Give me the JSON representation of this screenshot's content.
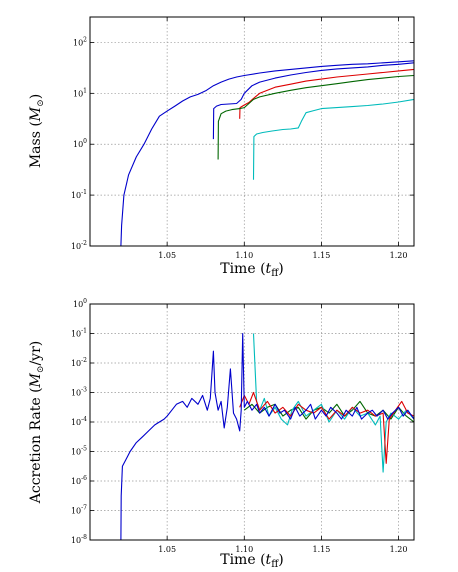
{
  "chart_data": [
    {
      "type": "line",
      "xlabel": "Time",
      "xlabel_sym": "t",
      "xlabel_sub": "ff",
      "ylabel": "Mass",
      "ylabel_sym": "M",
      "ylabel_sub": "⊙",
      "yscale": "log",
      "xlim": [
        1.0,
        1.21
      ],
      "ylim_exp": [
        -2,
        2.5
      ],
      "xticks": [
        "1.05",
        "1.10",
        "1.15",
        "1.20"
      ],
      "xtick_values": [
        1.05,
        1.1,
        1.15,
        1.2
      ],
      "yticks": [
        "10",
        "10",
        "10",
        "10",
        "10"
      ],
      "ytick_exps": [
        "-2",
        "-1",
        "0",
        "1",
        "2"
      ],
      "ytick_values": [
        -2,
        -1,
        0,
        1,
        2
      ],
      "grid": true,
      "series": [
        {
          "color": "#0000cc",
          "x": [
            1.02,
            1.0205,
            1.022,
            1.025,
            1.03,
            1.035,
            1.04,
            1.045,
            1.05,
            1.055,
            1.06,
            1.065,
            1.07,
            1.075,
            1.08,
            1.085,
            1.09,
            1.095,
            1.1,
            1.11,
            1.12,
            1.13,
            1.14,
            1.15,
            1.16,
            1.17,
            1.18,
            1.19,
            1.2,
            1.21
          ],
          "y": [
            -2.0,
            -1.6,
            -1.0,
            -0.6,
            -0.25,
            0.0,
            0.3,
            0.55,
            0.65,
            0.75,
            0.85,
            0.93,
            0.98,
            1.05,
            1.15,
            1.22,
            1.28,
            1.32,
            1.35,
            1.4,
            1.44,
            1.47,
            1.5,
            1.53,
            1.55,
            1.57,
            1.58,
            1.6,
            1.62,
            1.64
          ]
        },
        {
          "color": "#0000cc",
          "x": [
            1.08,
            1.0802,
            1.082,
            1.085,
            1.09,
            1.095,
            1.098,
            1.1,
            1.105,
            1.11,
            1.12,
            1.13,
            1.14,
            1.15,
            1.16,
            1.17,
            1.18,
            1.19,
            1.2,
            1.21
          ],
          "y": [
            0.1,
            0.7,
            0.75,
            0.78,
            0.79,
            0.8,
            0.88,
            1.0,
            1.15,
            1.22,
            1.3,
            1.36,
            1.41,
            1.45,
            1.48,
            1.5,
            1.52,
            1.55,
            1.57,
            1.6
          ]
        },
        {
          "color": "#dd0000",
          "x": [
            1.097,
            1.0972,
            1.1,
            1.103,
            1.106,
            1.11,
            1.12,
            1.13,
            1.14,
            1.15,
            1.16,
            1.17,
            1.18,
            1.19,
            1.2,
            1.21
          ],
          "y": [
            0.5,
            0.72,
            0.77,
            0.82,
            0.9,
            1.0,
            1.12,
            1.18,
            1.24,
            1.28,
            1.32,
            1.35,
            1.38,
            1.41,
            1.44,
            1.47
          ]
        },
        {
          "color": "#006600",
          "x": [
            1.083,
            1.0832,
            1.085,
            1.088,
            1.092,
            1.097,
            1.1,
            1.103,
            1.106,
            1.11,
            1.12,
            1.13,
            1.14,
            1.15,
            1.16,
            1.17,
            1.18,
            1.19,
            1.2,
            1.21
          ],
          "y": [
            -0.3,
            0.45,
            0.6,
            0.65,
            0.68,
            0.7,
            0.72,
            0.8,
            0.88,
            0.93,
            1.0,
            1.06,
            1.11,
            1.15,
            1.19,
            1.23,
            1.27,
            1.3,
            1.33,
            1.35
          ]
        },
        {
          "color": "#00bbbb",
          "x": [
            1.106,
            1.1062,
            1.108,
            1.112,
            1.118,
            1.125,
            1.13,
            1.135,
            1.137,
            1.14,
            1.145,
            1.15,
            1.16,
            1.17,
            1.18,
            1.19,
            1.2,
            1.21
          ],
          "y": [
            -0.7,
            0.15,
            0.2,
            0.23,
            0.26,
            0.29,
            0.3,
            0.32,
            0.45,
            0.62,
            0.66,
            0.7,
            0.72,
            0.74,
            0.76,
            0.79,
            0.83,
            0.88
          ]
        }
      ]
    },
    {
      "type": "line",
      "xlabel": "Time",
      "xlabel_sym": "t",
      "xlabel_sub": "ff",
      "ylabel": "Accretion Rate",
      "ylabel_sym": "M",
      "ylabel_sub": "⊙",
      "ylabel_unit": "/yr",
      "yscale": "log",
      "xlim": [
        1.0,
        1.21
      ],
      "ylim_exp": [
        -8,
        0
      ],
      "xticks": [
        "1.05",
        "1.10",
        "1.15",
        "1.20"
      ],
      "xtick_values": [
        1.05,
        1.1,
        1.15,
        1.2
      ],
      "yticks": [
        "10",
        "10",
        "10",
        "10",
        "10",
        "10",
        "10",
        "10",
        "10"
      ],
      "ytick_exps": [
        "-8",
        "-7",
        "-6",
        "-5",
        "-4",
        "-3",
        "-2",
        "-1",
        "0"
      ],
      "ytick_values": [
        -8,
        -7,
        -6,
        -5,
        -4,
        -3,
        -2,
        -1,
        0
      ],
      "grid": true,
      "series": [
        {
          "color": "#006600",
          "x": [
            1.1,
            1.105,
            1.11,
            1.115,
            1.12,
            1.125,
            1.13,
            1.135,
            1.14,
            1.145,
            1.15,
            1.155,
            1.16,
            1.165,
            1.17,
            1.175,
            1.18,
            1.185,
            1.19,
            1.195,
            1.2,
            1.205,
            1.21
          ],
          "y": [
            -3.6,
            -3.4,
            -3.7,
            -3.5,
            -3.4,
            -3.8,
            -3.6,
            -3.5,
            -3.9,
            -3.6,
            -3.5,
            -3.7,
            -3.4,
            -3.8,
            -3.6,
            -3.3,
            -3.7,
            -3.8,
            -3.6,
            -3.9,
            -3.5,
            -3.8,
            -4.0
          ]
        },
        {
          "color": "#00bbbb",
          "x": [
            1.106,
            1.108,
            1.11,
            1.113,
            1.116,
            1.12,
            1.124,
            1.128,
            1.131,
            1.135,
            1.14,
            1.145,
            1.15,
            1.155,
            1.16,
            1.165,
            1.17,
            1.175,
            1.18,
            1.185,
            1.188,
            1.19,
            1.192,
            1.195,
            1.2,
            1.205,
            1.21
          ],
          "y": [
            -1.0,
            -3.3,
            -3.6,
            -3.2,
            -3.8,
            -3.5,
            -3.9,
            -4.1,
            -3.6,
            -3.3,
            -3.8,
            -3.6,
            -3.4,
            -4.0,
            -3.6,
            -3.9,
            -3.5,
            -3.8,
            -3.7,
            -4.1,
            -3.8,
            -5.7,
            -4.0,
            -3.7,
            -3.9,
            -3.6,
            -3.9
          ]
        },
        {
          "color": "#dd0000",
          "x": [
            1.097,
            1.1,
            1.103,
            1.106,
            1.11,
            1.115,
            1.12,
            1.125,
            1.13,
            1.135,
            1.14,
            1.145,
            1.15,
            1.155,
            1.16,
            1.165,
            1.17,
            1.175,
            1.18,
            1.185,
            1.19,
            1.192,
            1.194,
            1.198,
            1.202,
            1.206,
            1.21
          ],
          "y": [
            -3.5,
            -3.1,
            -3.4,
            -3.0,
            -3.6,
            -3.3,
            -3.7,
            -3.5,
            -3.8,
            -3.4,
            -3.6,
            -3.7,
            -3.5,
            -3.9,
            -3.6,
            -3.8,
            -3.5,
            -3.7,
            -3.6,
            -3.8,
            -3.7,
            -5.4,
            -3.9,
            -3.6,
            -3.3,
            -3.7,
            -3.8
          ]
        },
        {
          "color": "#0000cc",
          "x": [
            1.02,
            1.0202,
            1.021,
            1.023,
            1.026,
            1.03,
            1.034,
            1.038,
            1.042,
            1.045,
            1.048,
            1.05,
            1.053,
            1.056,
            1.06,
            1.063,
            1.066,
            1.07,
            1.073,
            1.076,
            1.078,
            1.08,
            1.081,
            1.083,
            1.085,
            1.087,
            1.089,
            1.091,
            1.093,
            1.095,
            1.097,
            1.098,
            1.099,
            1.1,
            1.102,
            1.105,
            1.108,
            1.11,
            1.113,
            1.116,
            1.12,
            1.123,
            1.126,
            1.13,
            1.133,
            1.136,
            1.14,
            1.143,
            1.146,
            1.15,
            1.153,
            1.156,
            1.16,
            1.163,
            1.166,
            1.17,
            1.173,
            1.176,
            1.18,
            1.183,
            1.186,
            1.19,
            1.193,
            1.196,
            1.2,
            1.203,
            1.206,
            1.21
          ],
          "y": [
            -8.0,
            -6.5,
            -5.5,
            -5.3,
            -5.0,
            -4.7,
            -4.5,
            -4.3,
            -4.1,
            -4.0,
            -3.9,
            -3.8,
            -3.6,
            -3.4,
            -3.3,
            -3.5,
            -3.2,
            -3.4,
            -3.1,
            -3.6,
            -3.2,
            -1.6,
            -3.0,
            -3.6,
            -3.3,
            -4.2,
            -3.5,
            -2.2,
            -3.7,
            -3.9,
            -4.3,
            -3.6,
            -1.0,
            -3.5,
            -3.3,
            -3.6,
            -3.4,
            -3.7,
            -3.5,
            -3.8,
            -3.4,
            -3.7,
            -3.6,
            -3.9,
            -3.5,
            -3.8,
            -3.6,
            -3.4,
            -3.9,
            -3.6,
            -3.8,
            -3.5,
            -3.7,
            -3.9,
            -3.6,
            -3.8,
            -3.5,
            -3.9,
            -3.7,
            -3.6,
            -3.8,
            -3.6,
            -3.9,
            -3.7,
            -3.5,
            -3.8,
            -3.6,
            -3.9
          ]
        }
      ]
    }
  ]
}
